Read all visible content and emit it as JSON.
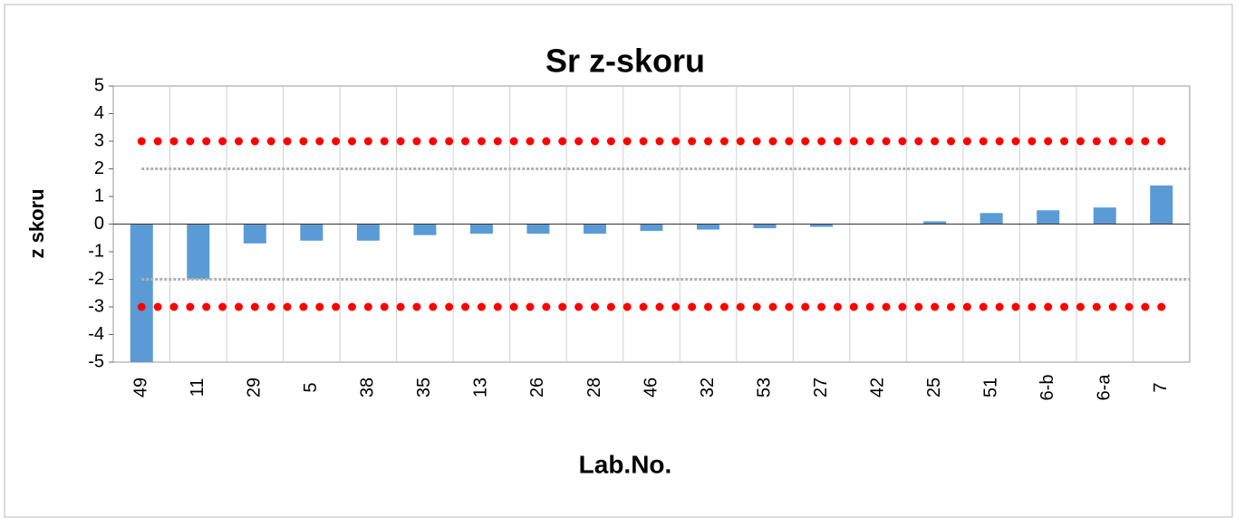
{
  "chart_data": {
    "type": "bar",
    "title": "Sr  z-skoru",
    "x_label": "Lab.No.",
    "y_label": "z skoru",
    "categories": [
      "49",
      "11",
      "29",
      "5",
      "38",
      "35",
      "13",
      "26",
      "28",
      "46",
      "32",
      "53",
      "27",
      "42",
      "25",
      "51",
      "6-b",
      "6-a",
      "7"
    ],
    "values": [
      -5,
      -2,
      -0.7,
      -0.6,
      -0.6,
      -0.4,
      -0.35,
      -0.35,
      -0.35,
      -0.25,
      -0.2,
      -0.15,
      -0.1,
      0,
      0.1,
      0.4,
      0.5,
      0.6,
      1.4
    ],
    "color": "#5b9bd5",
    "ylim": [
      -5,
      5
    ],
    "yticks": [
      -5,
      -4,
      -3,
      -2,
      -1,
      0,
      1,
      2,
      3,
      4,
      5
    ],
    "reference_lines": [
      {
        "value": 3,
        "color": "#ff0000",
        "style": "dots"
      },
      {
        "value": -3,
        "color": "#ff0000",
        "style": "dots"
      },
      {
        "value": 2,
        "color": "#b0b0b0",
        "style": "dashed"
      },
      {
        "value": -2,
        "color": "#b0b0b0",
        "style": "dashed"
      }
    ]
  }
}
